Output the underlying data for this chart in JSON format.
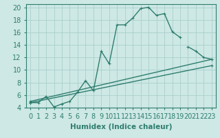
{
  "xlabel": "Humidex (Indice chaleur)",
  "background_color": "#cde8e5",
  "grid_color": "#aacfcc",
  "line_color": "#2e7d6e",
  "xlim": [
    -0.5,
    23.5
  ],
  "ylim": [
    4,
    20.5
  ],
  "xticks": [
    0,
    1,
    2,
    3,
    4,
    5,
    6,
    7,
    8,
    9,
    10,
    11,
    12,
    13,
    14,
    15,
    16,
    17,
    18,
    19,
    20,
    21,
    22,
    23
  ],
  "yticks": [
    4,
    6,
    8,
    10,
    12,
    14,
    16,
    18,
    20
  ],
  "line1_x": [
    0,
    1,
    2,
    3,
    4,
    5,
    6,
    7,
    8,
    9,
    10,
    11,
    12,
    13,
    14,
    15,
    16,
    17,
    18,
    19,
    20,
    21,
    22,
    23
  ],
  "line1_y": [
    4.8,
    4.8,
    5.8,
    4.1,
    4.6,
    5.0,
    6.5,
    8.3,
    6.7,
    13.0,
    11.0,
    17.2,
    17.2,
    18.3,
    19.8,
    20.0,
    18.7,
    19.0,
    16.1,
    15.2,
    null,
    null,
    null,
    null
  ],
  "line2_x": [
    0,
    1,
    2,
    3,
    4,
    5,
    6,
    7,
    8,
    9,
    10,
    11,
    12,
    13,
    14,
    15,
    16,
    17,
    18,
    19,
    20,
    21,
    22,
    23
  ],
  "line2_y": [
    4.8,
    null,
    null,
    null,
    null,
    null,
    null,
    null,
    null,
    null,
    null,
    null,
    null,
    null,
    null,
    null,
    null,
    null,
    null,
    null,
    13.7,
    13.0,
    12.0,
    11.7
  ],
  "line3_x": [
    0,
    23
  ],
  "line3_y": [
    5.0,
    11.7
  ],
  "line4_x": [
    0,
    23
  ],
  "line4_y": [
    4.8,
    10.7
  ],
  "linewidth": 1.0,
  "font_size": 7
}
